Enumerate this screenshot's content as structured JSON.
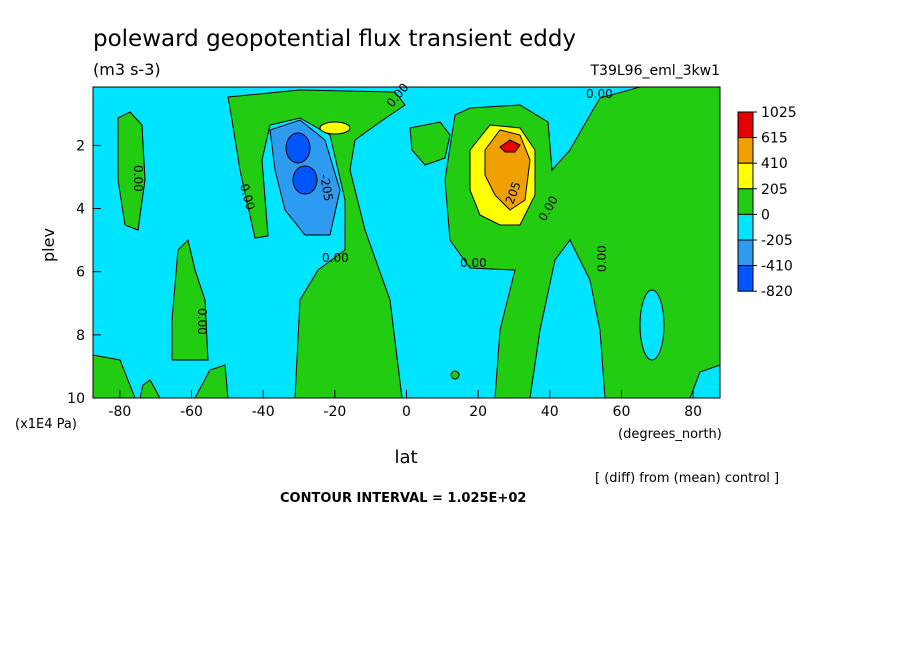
{
  "chart_data": {
    "type": "contour",
    "title": "poleward geopotential flux transient eddy",
    "subtitle": "(m3 s-3)",
    "run_label": "T39L96_eml_3kw1",
    "xlabel": "lat",
    "x_units": "(degrees_north)",
    "ylabel": "plev",
    "y_units": "(x1E4 Pa)",
    "note": "[ (diff) from (mean) control ]",
    "footer": "CONTOUR INTERVAL = 1.025E+02",
    "xlim": [
      -87.5,
      87.5
    ],
    "xticks": [
      -80,
      -60,
      -40,
      -20,
      0,
      20,
      40,
      60,
      80
    ],
    "ylim": [
      10,
      0.15
    ],
    "yticks": [
      2,
      4,
      6,
      8,
      10
    ],
    "levels": [
      1025,
      615,
      410,
      205,
      0,
      -205,
      -410,
      -820
    ],
    "colors": [
      "#e60000",
      "#f0a000",
      "#ffff00",
      "#22cc11",
      "#00e5ff",
      "#2d9cf0",
      "#0055ff"
    ],
    "contour_labels": [
      "0.00",
      "-205",
      "0.00",
      "0.00",
      "0.00",
      "0.00",
      "0.00",
      "205",
      "0.00",
      "0.00",
      "0.00"
    ]
  }
}
